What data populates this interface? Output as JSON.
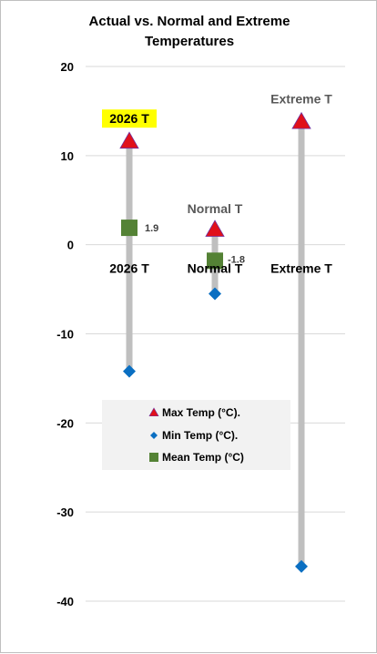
{
  "chart_data": {
    "type": "scatter",
    "title_lines": [
      "Actual vs. Normal and Extreme",
      "Temperatures"
    ],
    "categories": [
      "2026 T",
      "Normal T",
      "Extreme T"
    ],
    "ylim": [
      -40,
      20
    ],
    "yticks": [
      -40,
      -30,
      -20,
      -10,
      0,
      10,
      20
    ],
    "grid": true,
    "legend_placement": "lower-center",
    "series": [
      {
        "name": "Max Temp (°C).",
        "marker": "triangle",
        "color": "#e0101a",
        "values": [
          11.6,
          1.7,
          13.8
        ]
      },
      {
        "name": "Min Temp (°C).",
        "marker": "diamond",
        "color": "#0a6fc2",
        "values": [
          -14.2,
          -5.5,
          -36.1
        ]
      },
      {
        "name": "Mean Temp (°C)",
        "marker": "square",
        "color": "#548235",
        "values": [
          1.9,
          -1.8,
          null
        ]
      }
    ],
    "data_labels": {
      "mean_0": "1.9",
      "mean_1": "-1.8"
    },
    "annotations": {
      "top_0": "2026 T",
      "top_1": "Normal T",
      "top_2": "Extreme T"
    },
    "colors": {
      "range_bar": "#bfbfbf",
      "highlight": "#ffff00",
      "legend_bg": "#f2f2f2"
    }
  }
}
